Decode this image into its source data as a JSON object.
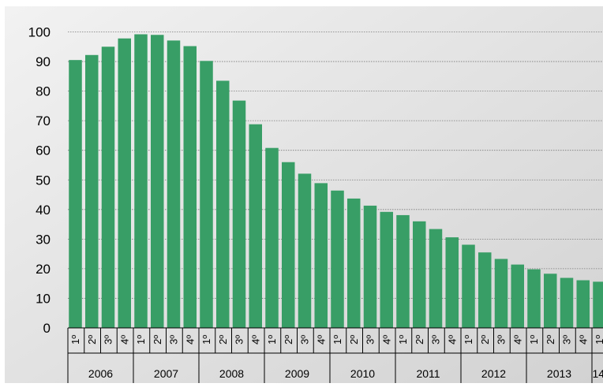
{
  "chart_data": {
    "type": "bar",
    "title": "",
    "xlabel": "",
    "ylabel": "",
    "ylim": [
      0,
      100
    ],
    "yticks": [
      "0",
      "10",
      "20",
      "30",
      "40",
      "50",
      "60",
      "70",
      "80",
      "90",
      "100"
    ],
    "grid": "horizontal dotted",
    "bar_color": "#389e66",
    "background": "#d9d9d9",
    "quarter_labels": [
      "1º",
      "2º",
      "3º",
      "4º"
    ],
    "years": [
      "2006",
      "2007",
      "2008",
      "2009",
      "2010",
      "2011",
      "2012",
      "2013",
      "14"
    ],
    "quarters_per_year": [
      4,
      4,
      4,
      4,
      4,
      4,
      4,
      4,
      1
    ],
    "values": [
      90.5,
      92.2,
      95.0,
      97.8,
      99.2,
      99.0,
      97.1,
      95.2,
      90.2,
      83.5,
      76.8,
      68.8,
      60.8,
      56.0,
      52.1,
      48.9,
      46.4,
      43.7,
      41.3,
      39.2,
      38.1,
      36.0,
      33.4,
      30.6,
      28.1,
      25.5,
      23.3,
      21.4,
      19.8,
      18.3,
      16.9,
      16.1,
      15.6
    ]
  }
}
